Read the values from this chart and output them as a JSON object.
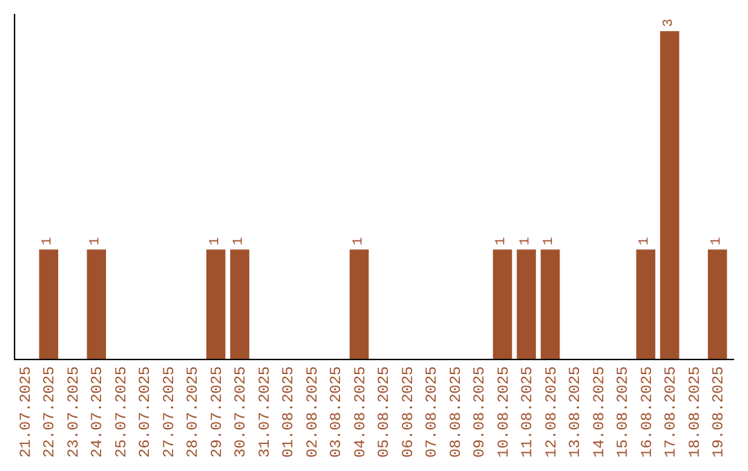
{
  "chart_data": {
    "type": "bar",
    "categories": [
      "21.07.2025",
      "22.07.2025",
      "23.07.2025",
      "24.07.2025",
      "25.07.2025",
      "26.07.2025",
      "27.07.2025",
      "28.07.2025",
      "29.07.2025",
      "30.07.2025",
      "31.07.2025",
      "01.08.2025",
      "02.08.2025",
      "03.08.2025",
      "04.08.2025",
      "05.08.2025",
      "06.08.2025",
      "07.08.2025",
      "08.08.2025",
      "09.08.2025",
      "10.08.2025",
      "11.08.2025",
      "12.08.2025",
      "13.08.2025",
      "14.08.2025",
      "15.08.2025",
      "16.08.2025",
      "17.08.2025",
      "18.08.2025",
      "19.08.2025"
    ],
    "values": [
      0,
      1,
      0,
      1,
      0,
      0,
      0,
      0,
      1,
      1,
      0,
      0,
      0,
      0,
      1,
      0,
      0,
      0,
      0,
      0,
      1,
      1,
      1,
      0,
      0,
      0,
      1,
      3,
      0,
      1
    ],
    "value_labels": [
      null,
      "1",
      null,
      "1",
      null,
      null,
      null,
      null,
      "1",
      "1",
      null,
      null,
      null,
      null,
      "1",
      null,
      null,
      null,
      null,
      null,
      "1",
      "1",
      "1",
      null,
      null,
      null,
      "1",
      "3",
      null,
      "1"
    ],
    "color": "#a0522d",
    "tick_labels": "x"
  }
}
